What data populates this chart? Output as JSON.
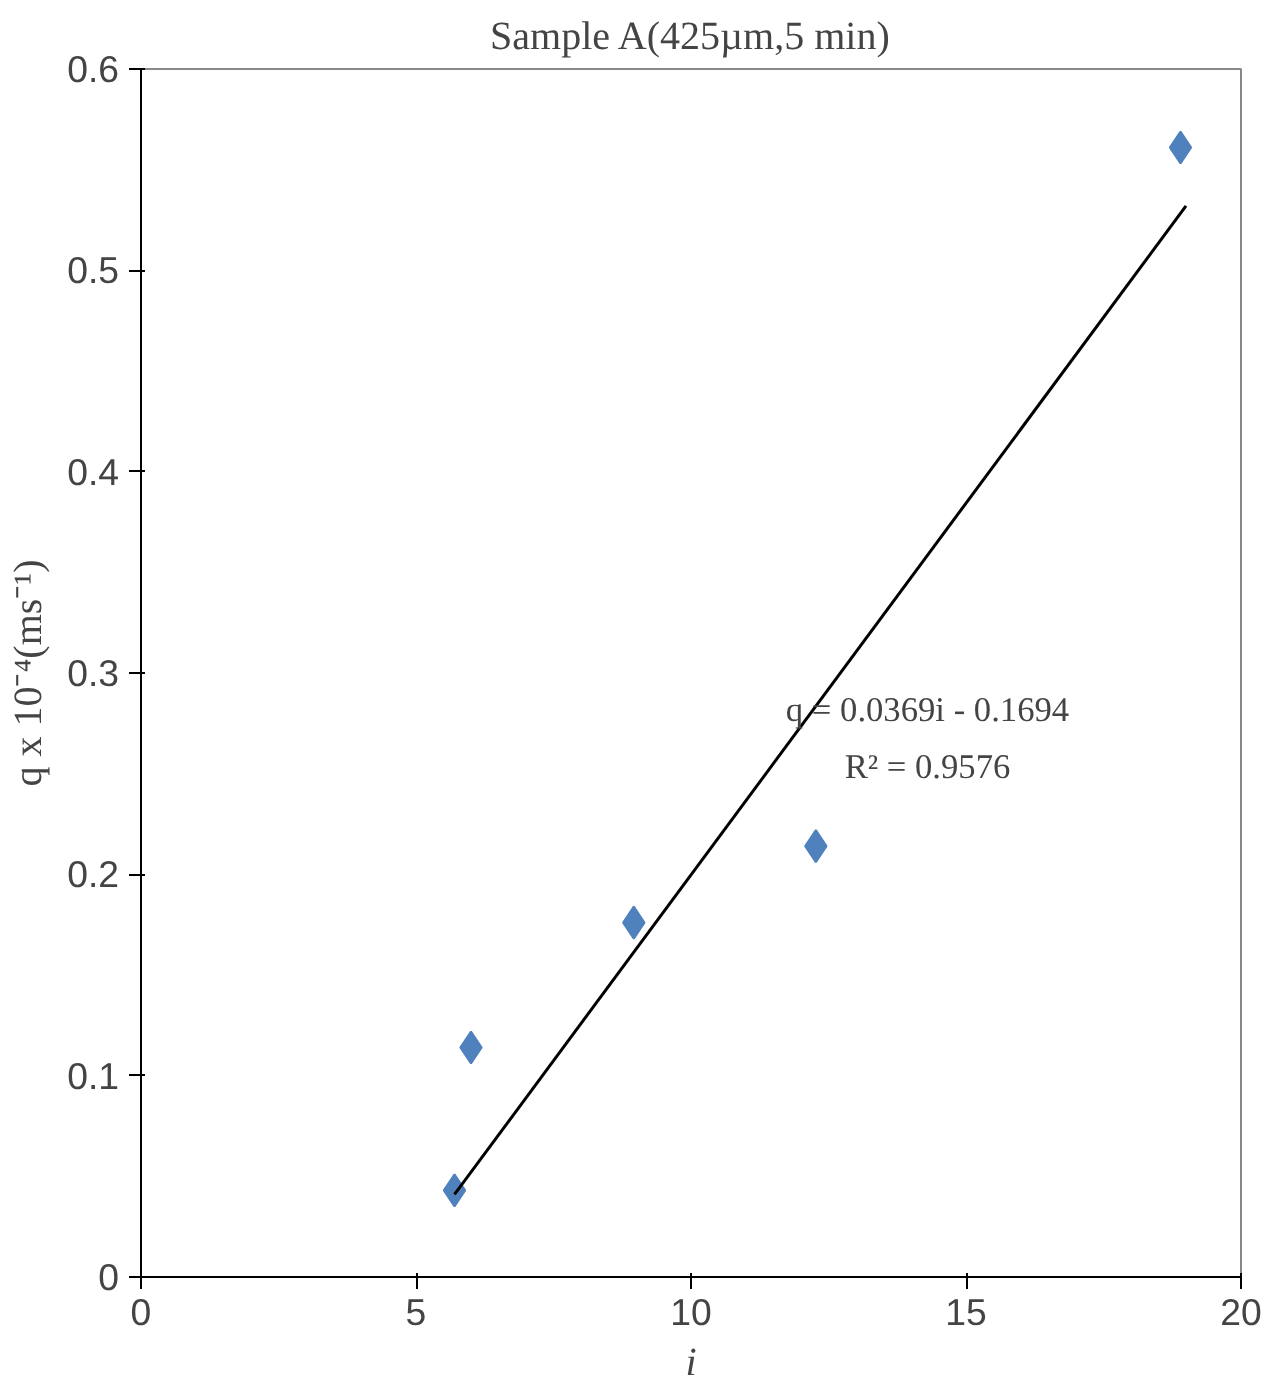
{
  "chart_data": {
    "type": "scatter",
    "title": "Sample A(425µm,5 min)",
    "xlabel": "i",
    "ylabel": "q x 10⁻⁴(ms⁻¹)",
    "series": [
      {
        "color": "#4f81bd",
        "marker": "diamond",
        "x": [
          5.7,
          6.0,
          8.96,
          12.27,
          18.9
        ],
        "values": [
          0.043,
          0.114,
          0.176,
          0.214,
          0.561
        ]
      },
      {
        "type": "line",
        "color": "#000000",
        "x": [
          5.7,
          19
        ],
        "values": [
          0.041,
          0.532
        ]
      }
    ],
    "xlim": [
      0,
      20
    ],
    "ylim": [
      0,
      0.6
    ],
    "xticks": [
      0,
      5,
      10,
      15,
      20
    ],
    "yticks": [
      0,
      0.1,
      0.2,
      0.3,
      0.4,
      0.5,
      0.6
    ],
    "annotations": [
      "q = 0.0369i - 0.1694",
      "R² = 0.9576"
    ],
    "grid": false
  }
}
